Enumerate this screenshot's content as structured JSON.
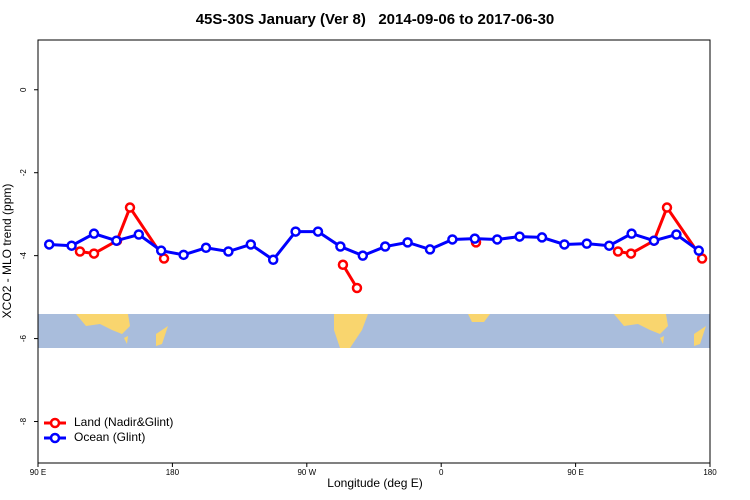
{
  "chart_data": {
    "type": "line",
    "title": "45S-30S January (Ver 8)   2014-09-06 to 2017-06-30",
    "x_label": "Longitude (deg E)",
    "y_label": "XCO2 - MLO trend (ppm)",
    "xlim": [
      90,
      540
    ],
    "xticks": [
      {
        "value": 90,
        "label": "90 E"
      },
      {
        "value": 180,
        "label": "180"
      },
      {
        "value": 270,
        "label": "90 W"
      },
      {
        "value": 360,
        "label": "0"
      },
      {
        "value": 450,
        "label": "90 E"
      },
      {
        "value": 540,
        "label": "180"
      }
    ],
    "ylim": [
      -9.0,
      1.2
    ],
    "yticks": [
      0,
      -2,
      -4,
      -6,
      -8
    ],
    "legend": "bottom-left",
    "series": [
      {
        "name": "Land (Nadir&Glint)",
        "color": "#ff0000",
        "x": [
          118.1,
          127.5,
          142.9,
          151.6,
          174.4,
          null,
          294.2,
          303.6,
          null,
          383.3,
          null,
          478.4,
          487.1,
          502.5,
          511.2,
          534.7
        ],
        "values": [
          -3.9,
          -3.95,
          -3.64,
          -2.84,
          -4.07,
          null,
          -4.22,
          -4.78,
          null,
          -3.68,
          null,
          -3.9,
          -3.95,
          -3.64,
          -2.84,
          -4.07
        ]
      },
      {
        "name": "Ocean (Glint)",
        "color": "#0000ff",
        "x": [
          97.5,
          112.5,
          127.5,
          142.5,
          157.5,
          172.5,
          187.5,
          202.5,
          217.5,
          232.5,
          247.5,
          262.5,
          277.5,
          292.5,
          307.5,
          322.5,
          337.5,
          352.5,
          367.5,
          382.5,
          397.5,
          412.5,
          427.5,
          442.5,
          457.5,
          472.5,
          487.5,
          502.5,
          517.5,
          532.5
        ],
        "values": [
          -3.73,
          -3.76,
          -3.47,
          -3.64,
          -3.49,
          -3.88,
          -3.98,
          -3.81,
          -3.9,
          -3.73,
          -4.1,
          -3.42,
          -3.42,
          -3.78,
          -4.0,
          -3.78,
          -3.68,
          -3.85,
          -3.61,
          -3.59,
          -3.61,
          -3.54,
          -3.56,
          -3.73,
          -3.71,
          -3.76,
          -3.47,
          -3.64,
          -3.49,
          -3.88
        ]
      }
    ]
  }
}
